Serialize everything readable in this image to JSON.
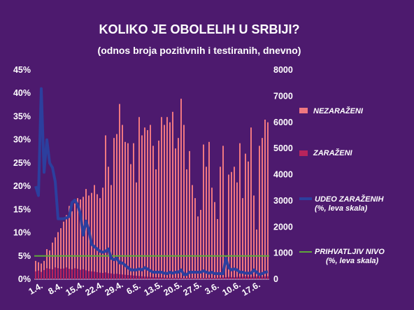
{
  "chart_data": {
    "type": "bar",
    "title": "KOLIKO JE OBOLELIH U SRBIJI?",
    "subtitle": "(odnos broja pozitivnih i testiranih, dnevno)",
    "x_tick_labels": [
      "1.4.",
      "8.4.",
      "15.4.",
      "22.4.",
      "29.4.",
      "6.5.",
      "13.5.",
      "20.5.",
      "27.5.",
      "3.6.",
      "10.6.",
      "17.6."
    ],
    "y_left": {
      "ticks": [
        "0%",
        "5%",
        "10%",
        "15%",
        "20%",
        "25%",
        "30%",
        "35%",
        "40%",
        "45%"
      ],
      "ylim": [
        0,
        45
      ]
    },
    "y_right": {
      "ticks": [
        "0",
        "1000",
        "2000",
        "3000",
        "4000",
        "5000",
        "6000",
        "7000",
        "8000"
      ],
      "ylim": [
        0,
        8000
      ]
    },
    "colors": {
      "background": "#4d1a6e",
      "nezarazeni": "#f07880",
      "zarazeni": "#b8245c",
      "udeo": "#2c3f9e",
      "prihvatljiv": "#5fa83a"
    },
    "series": [
      {
        "name": "NEZARAŽENI",
        "axis": "right",
        "type": "bar",
        "values": [
          700,
          650,
          600,
          700,
          1150,
          1100,
          1400,
          1600,
          1800,
          1950,
          2200,
          2450,
          2800,
          2600,
          2900,
          3100,
          3050,
          3150,
          3450,
          3200,
          3300,
          3600,
          3250,
          3100,
          3500,
          5500,
          4300,
          3600,
          5400,
          5550,
          6700,
          5900,
          5250,
          5200,
          4400,
          5200,
          3700,
          6200,
          5500,
          5800,
          5700,
          5900,
          5100,
          4200,
          5300,
          6200,
          5900,
          6200,
          6000,
          6400,
          5000,
          5400,
          6900,
          5900,
          4200,
          4900,
          3600,
          3100,
          2400,
          2650,
          5150,
          4300,
          5250,
          3500,
          2950,
          2300,
          4300,
          5100,
          900,
          4000,
          4100,
          4300,
          3700,
          5200,
          3100,
          4800,
          4500,
          5800,
          3200,
          1900,
          5100,
          5400,
          6100,
          6000
        ]
      },
      {
        "name": "ZARAŽENI",
        "axis": "right",
        "type": "bar",
        "values": [
          300,
          330,
          280,
          350,
          420,
          400,
          380,
          450,
          420,
          400,
          410,
          450,
          400,
          380,
          420,
          400,
          360,
          380,
          340,
          310,
          300,
          290,
          270,
          250,
          240,
          260,
          230,
          220,
          200,
          210,
          190,
          180,
          170,
          160,
          150,
          140,
          130,
          120,
          110,
          100,
          95,
          90,
          85,
          80,
          75,
          70,
          65,
          60,
          55,
          50,
          60,
          55,
          50,
          45,
          50,
          55,
          50,
          45,
          40,
          45,
          50,
          55,
          60,
          55,
          50,
          60,
          65,
          70,
          80,
          90,
          85,
          80,
          90,
          95,
          100,
          110,
          100,
          95,
          100,
          105,
          110,
          100,
          105,
          110
        ]
      },
      {
        "name": "UDEO ZARAŽENIH",
        "name2": "(%, leva skala)",
        "axis": "left",
        "type": "line",
        "values": [
          20,
          18,
          41,
          23,
          30,
          25,
          24,
          21,
          13,
          13,
          13,
          13.2,
          13.5,
          16.5,
          17,
          16,
          14,
          9.5,
          12.5,
          10.5,
          7.5,
          7,
          6.5,
          6,
          5.8,
          6,
          6.5,
          4.5,
          4.2,
          4.5,
          3.5,
          3.5,
          3,
          2.5,
          2,
          2,
          2,
          2.2,
          2,
          2.5,
          2.2,
          1.8,
          1.5,
          1.5,
          1.5,
          1.5,
          1.3,
          1.2,
          1.5,
          1.3,
          1.5,
          1.5,
          2,
          1,
          1,
          1.5,
          1.5,
          1.5,
          1.5,
          1.5,
          1.8,
          1.5,
          1.3,
          1.5,
          1.2,
          1.2,
          1.2,
          1.2,
          4.5,
          2.5,
          2,
          2.2,
          2,
          1.5,
          1.5,
          1.3,
          1.3,
          1.3,
          2,
          1.5,
          1,
          1.2,
          1.5,
          1.6
        ]
      },
      {
        "name": "PRIHVATLJIV NIVO",
        "name2": "(%, leva skala)",
        "axis": "left",
        "type": "line",
        "values": [
          5,
          5
        ]
      }
    ]
  }
}
